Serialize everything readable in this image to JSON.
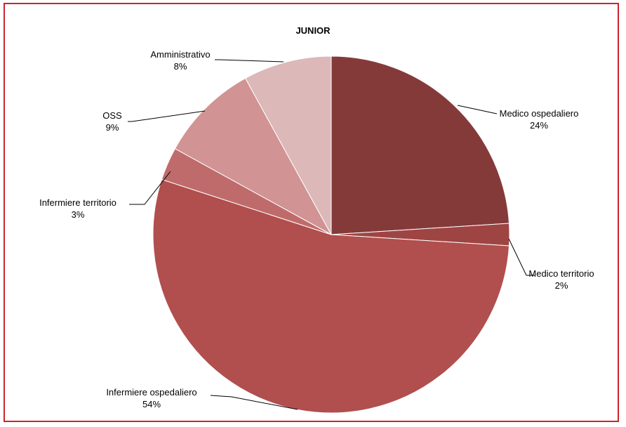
{
  "chart_data": {
    "type": "pie",
    "title": "JUNIOR",
    "start_angle_deg": 0,
    "direction": "clockwise",
    "slices": [
      {
        "label": "Medico ospedaliero",
        "value": 24,
        "display": "24%",
        "color": "#853a3a"
      },
      {
        "label": "Medico territorio",
        "value": 2,
        "display": "2%",
        "color": "#9e4544"
      },
      {
        "label": "Infermiere ospedaliero",
        "value": 54,
        "display": "54%",
        "color": "#b04f4e"
      },
      {
        "label": "Infermiere territorio",
        "value": 3,
        "display": "3%",
        "color": "#c06b6b"
      },
      {
        "label": "OSS",
        "value": 9,
        "display": "9%",
        "color": "#d19394"
      },
      {
        "label": "Amministrativo",
        "value": 8,
        "display": "8%",
        "color": "#dcb8b9"
      }
    ]
  }
}
